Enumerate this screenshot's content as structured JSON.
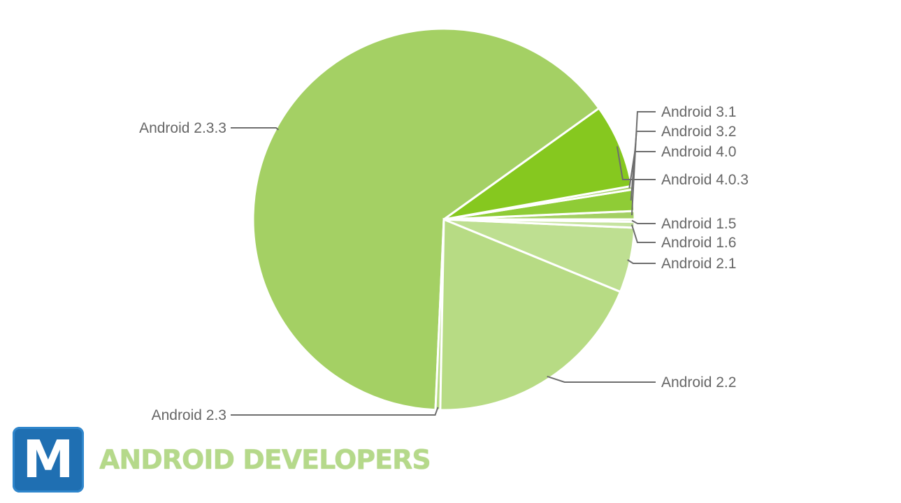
{
  "chart_data": {
    "type": "pie",
    "title": "",
    "start_at_degrees": 0,
    "direction": "counterclockwise",
    "slices": [
      {
        "label": "Android 3.1",
        "value": 0.7,
        "color": "#a4d064"
      },
      {
        "label": "Android 3.2",
        "value": 1.8,
        "color": "#8fcc36"
      },
      {
        "label": "Android 4.0",
        "value": 0.3,
        "color": "#a4d064"
      },
      {
        "label": "Android 4.0.3",
        "value": 7.1,
        "color": "#86c81f"
      },
      {
        "label": "Android 2.3.3",
        "value": 64.4,
        "color": "#a4d064"
      },
      {
        "label": "Android 2.3",
        "value": 0.4,
        "color": "#b5da82"
      },
      {
        "label": "Android 2.2",
        "value": 19.1,
        "color": "#b7db84"
      },
      {
        "label": "Android 2.1",
        "value": 5.5,
        "color": "#bedf91"
      },
      {
        "label": "Android 1.6",
        "value": 0.5,
        "color": "#c6e3a0"
      },
      {
        "label": "Android 1.5",
        "value": 0.2,
        "color": "#c9e5a5"
      }
    ]
  },
  "branding": {
    "logo_letter": "M",
    "text": "ANDROID DEVELOPERS",
    "badge_color": "#1f6fb2",
    "text_color": "#b5d98a"
  }
}
